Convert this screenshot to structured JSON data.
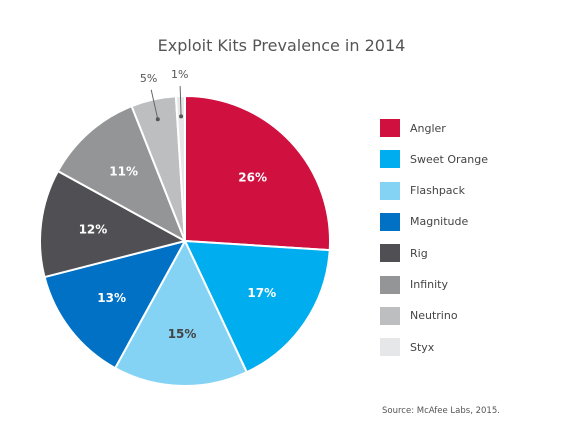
{
  "chart_data": {
    "type": "pie",
    "title": "Exploit Kits Prevalence in 2014",
    "source": "Source: McAfee Labs, 2015.",
    "legend_position": "right",
    "unit": "%",
    "slices": [
      {
        "label": "Angler",
        "value": 26,
        "value_label": "26%",
        "color": "#d0103f"
      },
      {
        "label": "Sweet Orange",
        "value": 17,
        "value_label": "17%",
        "color": "#00aeef"
      },
      {
        "label": "Flashpack",
        "value": 15,
        "value_label": "15%",
        "color": "#84d3f5"
      },
      {
        "label": "Magnitude",
        "value": 13,
        "value_label": "13%",
        "color": "#0071c5"
      },
      {
        "label": "Rig",
        "value": 12,
        "value_label": "12%",
        "color": "#505054"
      },
      {
        "label": "Infinity",
        "value": 11,
        "value_label": "11%",
        "color": "#949597"
      },
      {
        "label": "Neutrino",
        "value": 5,
        "value_label": "5%",
        "color": "#bcbec0"
      },
      {
        "label": "Styx",
        "value": 1,
        "value_label": "1%",
        "color": "#e6e7e8"
      }
    ]
  }
}
